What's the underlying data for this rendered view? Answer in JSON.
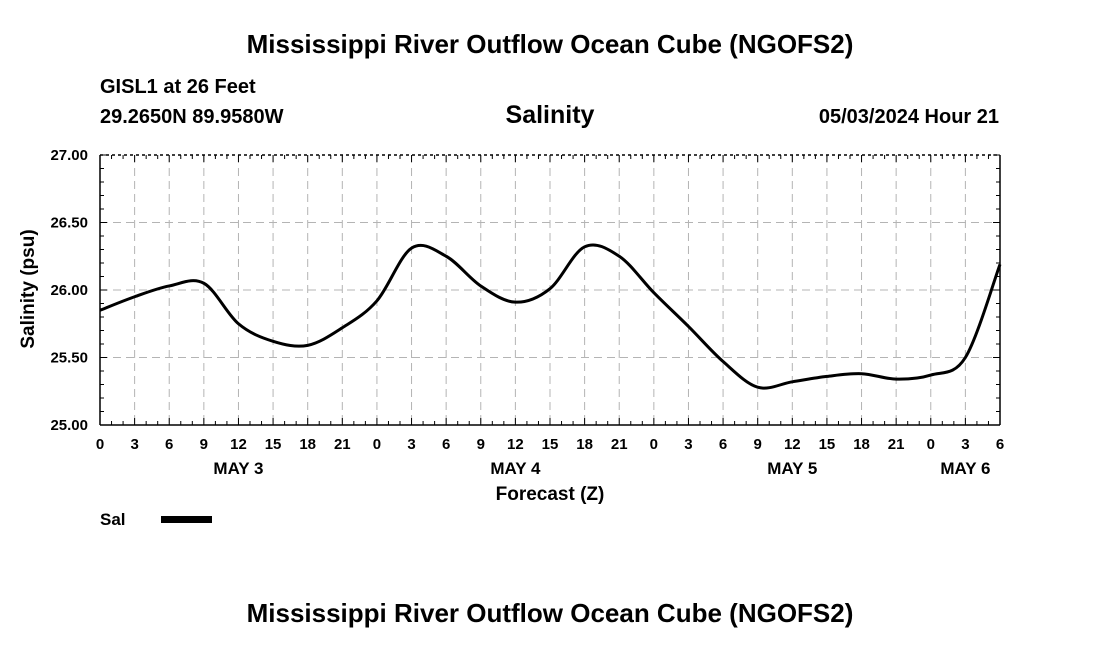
{
  "header": {
    "title": "Mississippi River Outflow Ocean Cube (NGOFS2)",
    "station": "GISL1 at 26 Feet",
    "coordinates": "29.2650N  89.9580W",
    "variable": "Salinity",
    "datetime": "05/03/2024 Hour 21"
  },
  "footer": {
    "title": "Mississippi River Outflow Ocean Cube (NGOFS2)"
  },
  "legend": {
    "label": "Sal",
    "color": "#000000"
  },
  "chart_data": {
    "type": "line",
    "title": "Salinity",
    "xlabel": "Forecast (Z)",
    "ylabel": "Salinity (psu)",
    "ylim": [
      25.0,
      27.0
    ],
    "xlim": [
      0,
      78
    ],
    "yticks": [
      "25.00",
      "25.50",
      "26.00",
      "26.50",
      "27.00"
    ],
    "xtick_labels": [
      "0",
      "3",
      "6",
      "9",
      "12",
      "15",
      "18",
      "21",
      "0",
      "3",
      "6",
      "9",
      "12",
      "15",
      "18",
      "21",
      "0",
      "3",
      "6",
      "9",
      "12",
      "15",
      "18",
      "21",
      "0",
      "3",
      "6"
    ],
    "day_labels": [
      {
        "label": "MAY 3",
        "hour": 12
      },
      {
        "label": "MAY 4",
        "hour": 36
      },
      {
        "label": "MAY 5",
        "hour": 60
      },
      {
        "label": "MAY 6",
        "hour": 75
      }
    ],
    "grid": true,
    "series": [
      {
        "name": "Sal",
        "color": "#000000",
        "x": [
          0,
          3,
          6,
          9,
          12,
          15,
          18,
          21,
          24,
          27,
          30,
          33,
          36,
          39,
          42,
          45,
          48,
          51,
          54,
          57,
          60,
          63,
          66,
          69,
          72,
          75,
          78
        ],
        "y": [
          25.85,
          25.95,
          26.03,
          26.05,
          25.75,
          25.62,
          25.59,
          25.72,
          25.92,
          26.31,
          26.25,
          26.03,
          25.91,
          26.01,
          26.32,
          26.25,
          25.98,
          25.73,
          25.47,
          25.28,
          25.32,
          25.36,
          25.38,
          25.34,
          25.37,
          25.5,
          26.19
        ]
      }
    ]
  }
}
